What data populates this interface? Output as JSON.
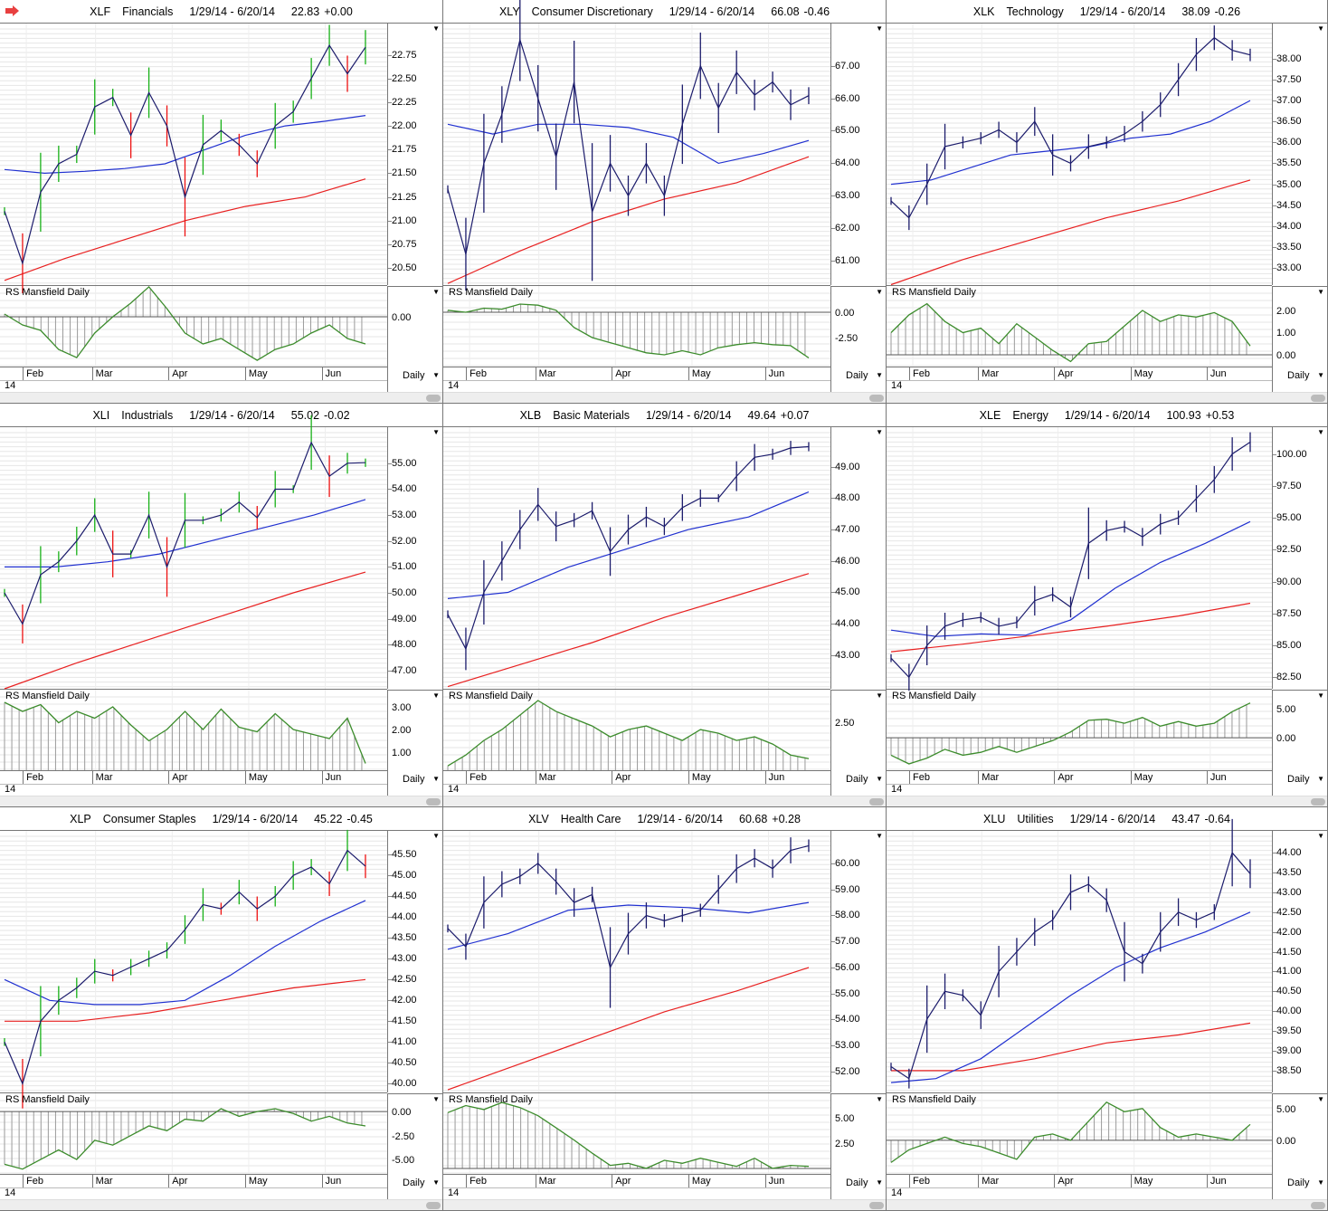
{
  "common": {
    "rs_label": "RS Mansfield Daily",
    "period": "Daily",
    "year": "14",
    "months": [
      "Feb",
      "Mar",
      "Apr",
      "May",
      "Jun"
    ],
    "date_range": "1/29/14 - 6/20/14"
  },
  "colors": {
    "price": "#1b1b6b",
    "up": "#17b117",
    "down": "#ee1111",
    "ma50": "#2030d0",
    "ma200": "#e82020",
    "rs": "#3c8c2c",
    "hist": "#9a9a9a"
  },
  "chart_data": [
    {
      "type": "line",
      "symbol": "XLF",
      "name": "Financials",
      "last": "22.83",
      "change": "+0.00",
      "style": "ohlc",
      "ylim": [
        20.32,
        23.08
      ],
      "yticks": [
        "22.75",
        "22.50",
        "22.25",
        "22.00",
        "21.75",
        "21.50",
        "21.25",
        "21.00",
        "20.75",
        "20.50"
      ],
      "close": [
        21.1,
        20.55,
        21.3,
        21.6,
        21.7,
        22.2,
        22.3,
        21.9,
        22.35,
        22.0,
        21.25,
        21.8,
        21.95,
        21.8,
        21.6,
        22.0,
        22.15,
        22.5,
        22.85,
        22.55,
        22.83
      ],
      "ma50": [
        21.54,
        21.5,
        21.52,
        21.55,
        21.6,
        21.75,
        21.9,
        22.0,
        22.05,
        22.11
      ],
      "ma200": [
        20.37,
        20.6,
        20.8,
        21.0,
        21.15,
        21.25,
        21.44
      ],
      "rs": {
        "ylim": [
          -1.83,
          1.13
        ],
        "yticks": [
          "0.00"
        ],
        "values": [
          0.1,
          -0.3,
          -0.5,
          -1.2,
          -1.5,
          -0.6,
          0,
          0.5,
          1.1,
          0.3,
          -0.6,
          -1.0,
          -0.8,
          -1.2,
          -1.6,
          -1.2,
          -1.0,
          -0.6,
          -0.3,
          -0.8,
          -1.0
        ]
      }
    },
    {
      "type": "line",
      "symbol": "XLY",
      "name": "Consumer Discretionary",
      "last": "66.08",
      "change": "-0.46",
      "style": "line",
      "ylim": [
        60.25,
        68.3
      ],
      "yticks": [
        "67.00",
        "66.00",
        "65.00",
        "64.00",
        "63.00",
        "62.00",
        "61.00"
      ],
      "close": [
        63.2,
        61.2,
        64.0,
        65.5,
        67.8,
        66.0,
        64.2,
        66.5,
        62.5,
        64.0,
        63.0,
        64.0,
        63.0,
        65.2,
        67.0,
        65.7,
        66.8,
        66.1,
        66.5,
        65.8,
        66.08
      ],
      "ma50": [
        65.2,
        64.9,
        65.2,
        65.2,
        65.1,
        64.8,
        64.0,
        64.3,
        64.7
      ],
      "ma200": [
        60.3,
        61.3,
        62.2,
        62.9,
        63.4,
        64.2
      ],
      "rs": {
        "ylim": [
          -5.36,
          2.59
        ],
        "yticks": [
          "0.00",
          "-2.50"
        ],
        "values": [
          0.2,
          0.0,
          0.4,
          0.3,
          0.8,
          0.7,
          0.2,
          -1.5,
          -2.5,
          -3.0,
          -3.5,
          -4.0,
          -4.2,
          -3.8,
          -4.2,
          -3.5,
          -3.2,
          -3.0,
          -3.2,
          -3.3,
          -4.5
        ]
      }
    },
    {
      "type": "line",
      "symbol": "XLK",
      "name": "Technology",
      "last": "38.09",
      "change": "-0.26",
      "style": "line",
      "ylim": [
        32.59,
        38.84
      ],
      "yticks": [
        "38.00",
        "37.50",
        "37.00",
        "36.50",
        "36.00",
        "35.50",
        "35.00",
        "34.50",
        "34.00",
        "33.50",
        "33.00"
      ],
      "close": [
        34.6,
        34.2,
        35.0,
        35.9,
        36.0,
        36.1,
        36.3,
        36.0,
        36.5,
        35.7,
        35.5,
        35.9,
        36.0,
        36.2,
        36.5,
        36.9,
        37.5,
        38.1,
        38.5,
        38.2,
        38.09
      ],
      "ma50": [
        35.0,
        35.1,
        35.4,
        35.7,
        35.8,
        35.9,
        36.1,
        36.2,
        36.5,
        37.0
      ],
      "ma200": [
        32.6,
        33.2,
        33.7,
        34.2,
        34.6,
        35.1
      ],
      "rs": {
        "ylim": [
          -0.53,
          3.1
        ],
        "yticks": [
          "2.00",
          "1.00",
          "0.00"
        ],
        "values": [
          1.0,
          1.8,
          2.3,
          1.5,
          1.0,
          1.2,
          0.5,
          1.4,
          0.8,
          0.2,
          -0.3,
          0.5,
          0.6,
          1.3,
          2.0,
          1.5,
          1.8,
          1.7,
          1.9,
          1.5,
          0.4
        ]
      }
    },
    {
      "type": "line",
      "symbol": "XLI",
      "name": "Industrials",
      "last": "55.02",
      "change": "-0.02",
      "style": "ohlc",
      "ylim": [
        46.3,
        56.39
      ],
      "yticks": [
        "55.00",
        "54.00",
        "53.00",
        "52.00",
        "51.00",
        "50.00",
        "49.00",
        "48.00",
        "47.00"
      ],
      "close": [
        50.0,
        48.8,
        50.7,
        51.2,
        52.0,
        53.0,
        51.5,
        51.5,
        53.0,
        51.0,
        52.8,
        52.8,
        53.0,
        53.5,
        52.9,
        54.0,
        54.0,
        55.8,
        54.5,
        55.0,
        55.02
      ],
      "ma50": [
        51.0,
        51.0,
        51.2,
        51.5,
        52.0,
        52.5,
        53.0,
        53.6
      ],
      "ma200": [
        46.3,
        47.3,
        48.2,
        49.1,
        50.0,
        50.8
      ],
      "rs": {
        "ylim": [
          0.2,
          3.76
        ],
        "yticks": [
          "3.00",
          "2.00",
          "1.00"
        ],
        "values": [
          3.2,
          2.8,
          3.1,
          2.3,
          2.8,
          2.5,
          3.0,
          2.2,
          1.5,
          2.0,
          2.8,
          2.0,
          2.9,
          2.1,
          1.9,
          2.7,
          2.0,
          1.8,
          1.6,
          2.5,
          0.5
        ]
      }
    },
    {
      "type": "line",
      "symbol": "XLB",
      "name": "Basic Materials",
      "last": "49.64",
      "change": "+0.07",
      "style": "line",
      "ylim": [
        41.93,
        50.26
      ],
      "yticks": [
        "49.00",
        "48.00",
        "47.00",
        "46.00",
        "45.00",
        "44.00",
        "43.00"
      ],
      "close": [
        44.3,
        43.2,
        45.0,
        46.0,
        47.0,
        47.8,
        47.1,
        47.3,
        47.6,
        46.3,
        47.0,
        47.4,
        47.1,
        47.7,
        48.0,
        48.0,
        48.7,
        49.3,
        49.4,
        49.6,
        49.64
      ],
      "ma50": [
        44.8,
        45.0,
        45.8,
        46.4,
        47.0,
        47.4,
        48.2
      ],
      "ma200": [
        42.0,
        42.7,
        43.4,
        44.2,
        44.9,
        45.6
      ],
      "rs": {
        "ylim": [
          1.18,
          3.4
        ],
        "yticks": [
          "2.50"
        ],
        "values": [
          1.3,
          1.6,
          2.0,
          2.3,
          2.7,
          3.1,
          2.8,
          2.6,
          2.4,
          2.1,
          2.3,
          2.4,
          2.2,
          2.0,
          2.3,
          2.2,
          2.0,
          2.1,
          1.9,
          1.6,
          1.5
        ]
      }
    },
    {
      "type": "line",
      "symbol": "XLE",
      "name": "Energy",
      "last": "100.93",
      "change": "+0.53",
      "style": "line",
      "ylim": [
        81.6,
        102.1
      ],
      "yticks": [
        "100.00",
        "97.50",
        "95.00",
        "92.50",
        "90.00",
        "87.50",
        "85.00",
        "82.50"
      ],
      "close": [
        84.0,
        82.5,
        85.0,
        86.5,
        87.0,
        87.2,
        86.5,
        86.8,
        88.5,
        89.0,
        88.0,
        93.0,
        94.0,
        94.3,
        93.5,
        94.5,
        95.0,
        96.5,
        98.0,
        100.0,
        100.93
      ],
      "ma50": [
        86.2,
        85.7,
        85.9,
        85.8,
        87.0,
        89.5,
        91.5,
        93.0,
        94.7
      ],
      "ma200": [
        84.5,
        85.1,
        85.8,
        86.5,
        87.3,
        88.3
      ],
      "rs": {
        "ylim": [
          -5.6,
          8.3
        ],
        "yticks": [
          "5.00",
          "0.00"
        ],
        "values": [
          -3.0,
          -4.5,
          -3.5,
          -2.0,
          -3.0,
          -2.5,
          -1.5,
          -2.5,
          -1.5,
          -0.5,
          1.0,
          3.0,
          3.2,
          2.5,
          3.5,
          2.0,
          2.8,
          2.0,
          2.5,
          4.5,
          6.0
        ]
      }
    },
    {
      "type": "line",
      "symbol": "XLP",
      "name": "Consumer Staples",
      "last": "45.22",
      "change": "-0.45",
      "style": "ohlc",
      "ylim": [
        39.79,
        46.07
      ],
      "yticks": [
        "45.50",
        "45.00",
        "44.50",
        "44.00",
        "43.50",
        "43.00",
        "42.50",
        "42.00",
        "41.50",
        "41.00",
        "40.50",
        "40.00"
      ],
      "close": [
        41.0,
        40.0,
        41.5,
        42.0,
        42.3,
        42.7,
        42.6,
        42.8,
        43.0,
        43.2,
        43.7,
        44.3,
        44.2,
        44.6,
        44.2,
        44.5,
        45.0,
        45.2,
        44.8,
        45.6,
        45.22
      ],
      "ma50": [
        42.5,
        42.0,
        41.9,
        41.9,
        42.0,
        42.6,
        43.3,
        43.9,
        44.4
      ],
      "ma200": [
        41.5,
        41.5,
        41.7,
        42.0,
        42.3,
        42.5
      ],
      "rs": {
        "ylim": [
          -6.5,
          1.9
        ],
        "yticks": [
          "0.00",
          "-2.50",
          "-5.00"
        ],
        "values": [
          -5.5,
          -6.0,
          -5.0,
          -4.0,
          -5.0,
          -3.0,
          -3.5,
          -2.5,
          -1.5,
          -2.0,
          -0.8,
          -1.0,
          0.3,
          -0.5,
          0.0,
          0.3,
          -0.2,
          -1.0,
          -0.5,
          -1.2,
          -1.5
        ]
      }
    },
    {
      "type": "line",
      "symbol": "XLV",
      "name": "Health Care",
      "last": "60.68",
      "change": "+0.28",
      "style": "line",
      "ylim": [
        51.2,
        61.25
      ],
      "yticks": [
        "60.00",
        "59.00",
        "58.00",
        "57.00",
        "56.00",
        "55.00",
        "54.00",
        "53.00",
        "52.00"
      ],
      "close": [
        57.5,
        56.8,
        58.5,
        59.2,
        59.5,
        60.0,
        59.3,
        58.5,
        58.8,
        56.0,
        57.3,
        58.0,
        57.8,
        58.0,
        58.2,
        59.0,
        59.8,
        60.2,
        59.8,
        60.5,
        60.68
      ],
      "ma50": [
        56.7,
        57.3,
        58.2,
        58.4,
        58.3,
        58.1,
        58.5
      ],
      "ma200": [
        51.3,
        52.3,
        53.3,
        54.3,
        55.1,
        56.0
      ],
      "rs": {
        "ylim": [
          -0.54,
          7.4
        ],
        "yticks": [
          "5.00",
          "2.50"
        ],
        "values": [
          5.5,
          6.2,
          5.8,
          6.5,
          6.0,
          5.2,
          4.0,
          2.8,
          1.5,
          0.3,
          0.5,
          0.0,
          0.8,
          0.5,
          1.0,
          0.6,
          0.2,
          1.0,
          0.0,
          0.3,
          0.2
        ]
      }
    },
    {
      "type": "line",
      "symbol": "XLU",
      "name": "Utilities",
      "last": "43.47",
      "change": "-0.64",
      "style": "line",
      "ylim": [
        37.95,
        44.55
      ],
      "yticks": [
        "44.00",
        "43.50",
        "43.00",
        "42.50",
        "42.00",
        "41.50",
        "41.00",
        "40.50",
        "40.00",
        "39.50",
        "39.00",
        "38.50"
      ],
      "close": [
        38.6,
        38.3,
        39.8,
        40.5,
        40.4,
        39.9,
        41.0,
        41.5,
        42.0,
        42.3,
        43.0,
        43.2,
        42.8,
        41.5,
        41.2,
        42.0,
        42.5,
        42.3,
        42.5,
        44.0,
        43.47
      ],
      "ma50": [
        38.2,
        38.3,
        38.8,
        39.6,
        40.4,
        41.1,
        41.6,
        42.0,
        42.5
      ],
      "ma200": [
        38.5,
        38.5,
        38.8,
        39.2,
        39.4,
        39.7
      ],
      "rs": {
        "ylim": [
          -5.3,
          7.4
        ],
        "yticks": [
          "5.00",
          "0.00"
        ],
        "values": [
          -3.5,
          -1.5,
          -0.5,
          0.5,
          -0.5,
          -1.0,
          -2.0,
          -3.0,
          0.5,
          1.0,
          0.0,
          3.0,
          6.0,
          4.5,
          5.0,
          2.0,
          0.5,
          1.0,
          0.5,
          0.0,
          2.5
        ]
      }
    }
  ]
}
